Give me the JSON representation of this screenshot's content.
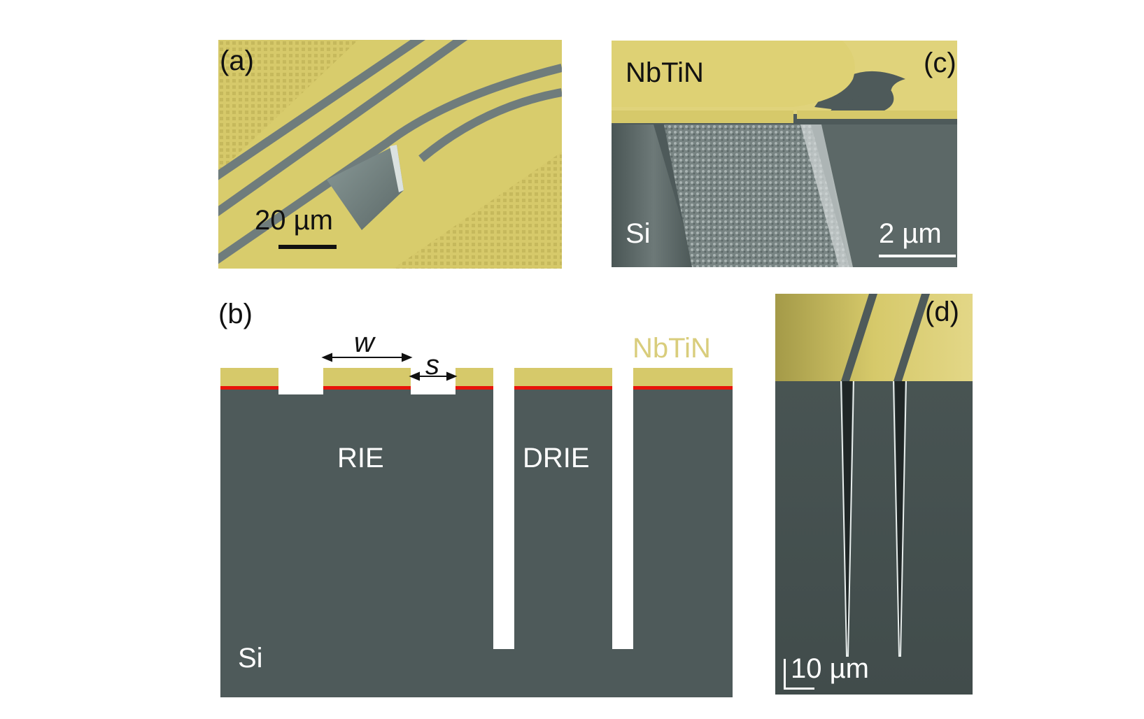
{
  "colors": {
    "nbtin": "#d6c96a",
    "si": "#4e5a5a",
    "interface": "#e8140a",
    "nbtin_text": "#d9cd7c"
  },
  "panel_a": {
    "label": "(a)",
    "scalebar": "20 µm"
  },
  "panel_b": {
    "label": "(b)",
    "w": "w",
    "s": "s",
    "nbtin": "NbTiN",
    "rie": "RIE",
    "drie": "DRIE",
    "si": "Si"
  },
  "panel_c": {
    "label": "(c)",
    "nbtin": "NbTiN",
    "si": "Si",
    "scalebar": "2 µm"
  },
  "panel_d": {
    "label": "(d)",
    "scalebar": "10 µm"
  }
}
